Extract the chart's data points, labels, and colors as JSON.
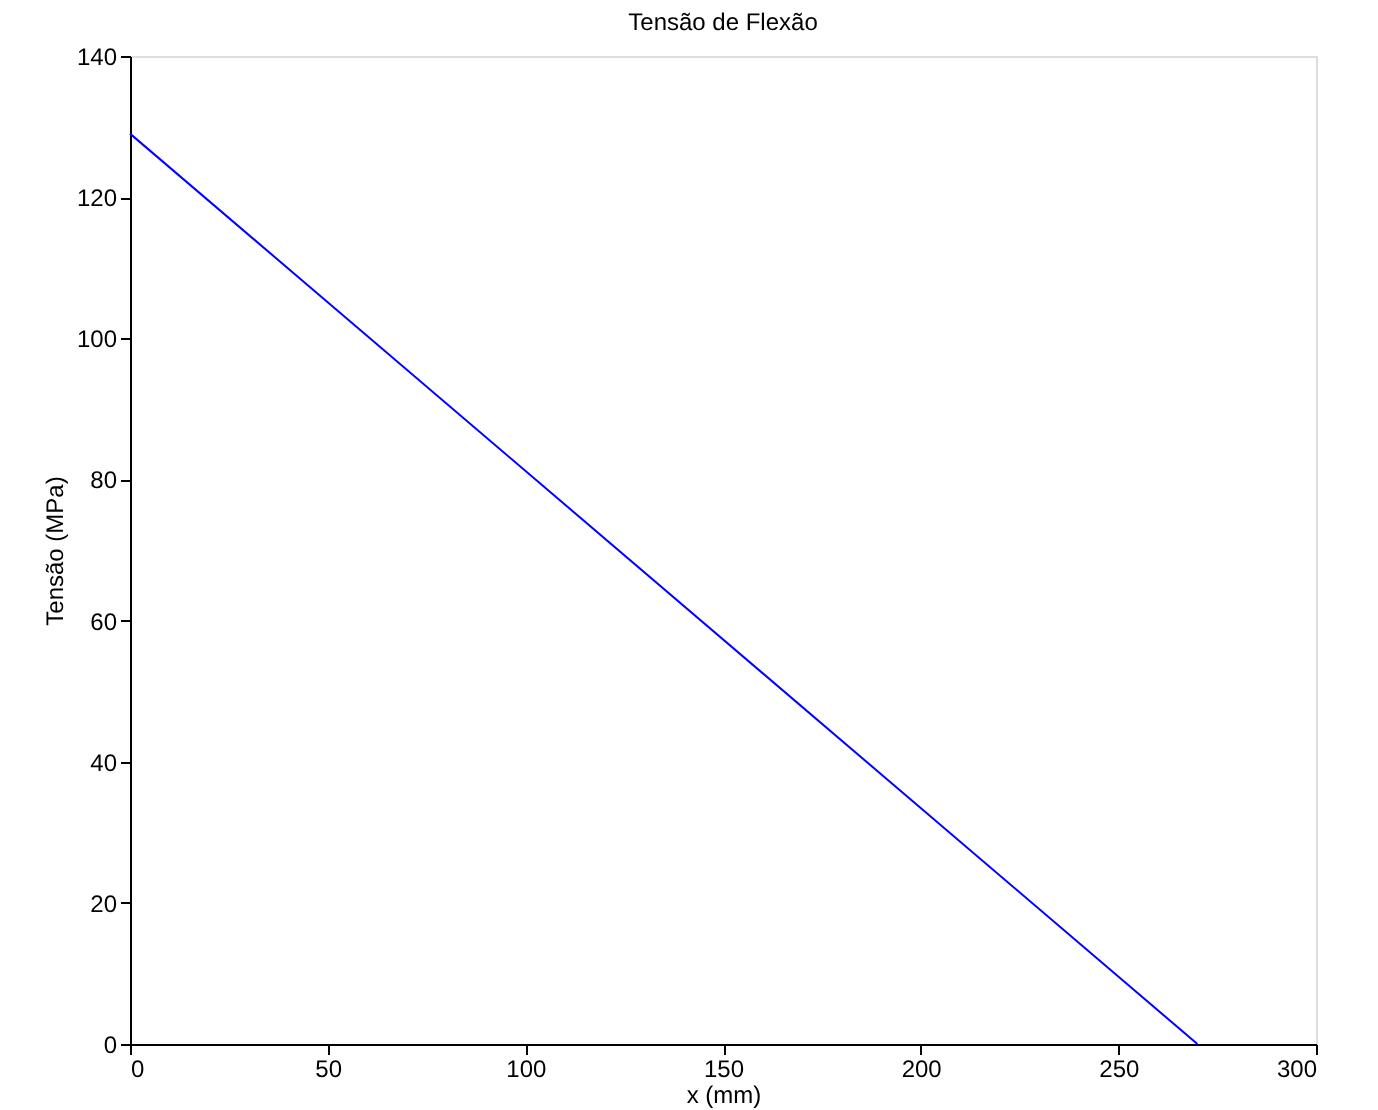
{
  "chart_data": {
    "type": "line",
    "title": "Tensão de Flexão",
    "xlabel": "x (mm)",
    "ylabel": "Tensão (MPa)",
    "x": [
      0,
      270
    ],
    "series": [
      {
        "color": "#0000ff",
        "values": [
          129,
          0
        ]
      }
    ],
    "xlim": [
      0,
      300
    ],
    "xticks": [
      0,
      50,
      100,
      150,
      200,
      250,
      300
    ],
    "ylim": [
      0,
      140
    ],
    "yticks": [
      0,
      20,
      40,
      60,
      80,
      100,
      120,
      140
    ],
    "grid": false,
    "legend": false,
    "marker": "none",
    "line_style": "solid"
  }
}
